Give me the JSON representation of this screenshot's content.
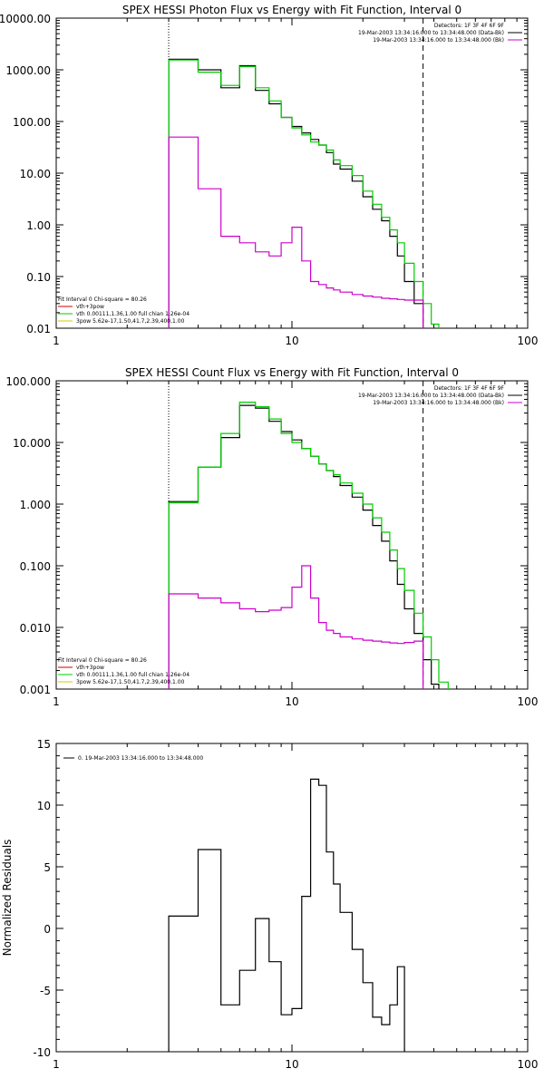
{
  "chart_data": [
    {
      "type": "line",
      "title": "SPEX HESSI Photon Flux vs Energy with Fit Function, Interval 0",
      "xscale": "log",
      "yscale": "log",
      "xlim": [
        1,
        100
      ],
      "ylim": [
        0.01,
        10000
      ],
      "xticks": [
        1,
        10,
        100
      ],
      "xtick_labels": [
        "1",
        "10",
        "100"
      ],
      "yticks": [
        0.01,
        0.1,
        1,
        10,
        100,
        1000,
        10000
      ],
      "ytick_labels": [
        "0.01",
        "0.10",
        "1.00",
        "10.00",
        "100.00",
        "1000.00",
        "10000.00"
      ],
      "vlines": [
        {
          "x": 3.0,
          "style": "dotted"
        },
        {
          "x": 36.0,
          "style": "dashed"
        }
      ],
      "legend_top": [
        {
          "text": "Detectors: 1F 3F 4F 6F 9F",
          "color": "#000000"
        },
        {
          "text": "19-Mar-2003 13:34:16.000 to 13:34:48.000 (Data-Bk)",
          "color": "#000000"
        },
        {
          "text": "19-Mar-2003 13:34:16.000 to 13:34:48.000 (Bk)",
          "color": "#cc00cc"
        }
      ],
      "legend_bottom": [
        {
          "text": "Fit Interval 0   Chi-square = 80.26",
          "color": null
        },
        {
          "text": "vth+3pow",
          "color": "#cc0000"
        },
        {
          "text": "vth 0.00111,1.36,1.00  full chian 1.26e-04",
          "color": "#00cc00"
        },
        {
          "text": "3pow 5.62e-17,1.50,41.7,2.39,400,1.00",
          "color": "#cccc00"
        }
      ],
      "bin_edges": [
        3,
        4,
        5,
        6,
        7,
        8,
        9,
        10,
        11,
        12,
        13,
        14,
        15,
        16,
        18,
        20,
        22,
        24,
        26,
        28,
        30,
        33,
        36,
        39,
        42
      ],
      "series": [
        {
          "color": "#000000",
          "values": [
            1600,
            1000,
            450,
            1200,
            400,
            220,
            120,
            80,
            60,
            45,
            35,
            25,
            15,
            12,
            7,
            3.5,
            2.0,
            1.2,
            0.6,
            0.25,
            0.08,
            0.03,
            null,
            null
          ]
        },
        {
          "color": "#00cc00",
          "values": [
            1550,
            900,
            500,
            1150,
            450,
            250,
            120,
            75,
            55,
            40,
            35,
            28,
            18,
            14,
            9,
            4.5,
            2.5,
            1.4,
            0.8,
            0.45,
            0.18,
            0.08,
            0.03,
            0.012
          ]
        },
        {
          "color": "#cc00cc",
          "values": [
            50,
            5,
            0.6,
            0.45,
            0.3,
            0.25,
            0.45,
            0.9,
            0.2,
            0.08,
            0.07,
            0.06,
            0.055,
            0.05,
            0.045,
            0.042,
            0.04,
            0.038,
            0.037,
            0.036,
            0.035,
            0.035,
            null,
            null
          ]
        }
      ]
    },
    {
      "type": "line",
      "title": "SPEX HESSI Count Flux vs Energy with Fit Function, Interval 0",
      "xscale": "log",
      "yscale": "log",
      "xlim": [
        1,
        100
      ],
      "ylim": [
        0.001,
        100
      ],
      "xticks": [
        1,
        10,
        100
      ],
      "xtick_labels": [
        "1",
        "10",
        "100"
      ],
      "yticks": [
        0.001,
        0.01,
        0.1,
        1,
        10,
        100
      ],
      "ytick_labels": [
        "0.001",
        "0.010",
        "0.100",
        "1.000",
        "10.000",
        "100.000"
      ],
      "vlines": [
        {
          "x": 3.0,
          "style": "dotted"
        },
        {
          "x": 36.0,
          "style": "dashed"
        }
      ],
      "legend_top": [
        {
          "text": "Detectors: 1F 3F 4F 6F 9F",
          "color": "#000000"
        },
        {
          "text": "19-Mar-2003 13:34:16.000 to 13:34:48.000 (Data-Bk)",
          "color": "#000000"
        },
        {
          "text": "19-Mar-2003 13:34:16.000 to 13:34:48.000 (Bk)",
          "color": "#cc00cc"
        }
      ],
      "legend_bottom": [
        {
          "text": "Fit Interval 0   Chi-square = 80.26",
          "color": null
        },
        {
          "text": "vth+3pow",
          "color": "#cc0000"
        },
        {
          "text": "vth 0.00111,1.36,1.00  full chian 1.26e-04",
          "color": "#00cc00"
        },
        {
          "text": "3pow 5.62e-17,1.50,41.7,2.39,400,1.00",
          "color": "#cccc00"
        }
      ],
      "bin_edges": [
        3,
        4,
        5,
        6,
        7,
        8,
        9,
        10,
        11,
        12,
        13,
        14,
        15,
        16,
        18,
        20,
        22,
        24,
        26,
        28,
        30,
        33,
        36,
        39,
        42,
        46
      ],
      "series": [
        {
          "color": "#000000",
          "values": [
            1.1,
            4.0,
            12,
            40,
            36,
            22,
            15,
            11,
            8,
            6,
            4.5,
            3.5,
            2.8,
            2.0,
            1.3,
            0.8,
            0.45,
            0.25,
            0.12,
            0.05,
            0.02,
            0.008,
            0.003,
            0.0012,
            null
          ]
        },
        {
          "color": "#00cc00",
          "values": [
            1.05,
            4.0,
            14,
            45,
            38,
            24,
            14,
            10,
            8,
            6,
            4.5,
            3.5,
            3.0,
            2.2,
            1.5,
            1.0,
            0.6,
            0.35,
            0.18,
            0.09,
            0.04,
            0.017,
            0.007,
            0.003,
            0.0013
          ]
        },
        {
          "color": "#cc00cc",
          "values": [
            0.035,
            0.03,
            0.025,
            0.02,
            0.018,
            0.019,
            0.021,
            0.045,
            0.1,
            0.03,
            0.012,
            0.009,
            0.008,
            0.007,
            0.0065,
            0.0062,
            0.006,
            0.0058,
            0.0056,
            0.0055,
            0.0057,
            0.006,
            null,
            null,
            null
          ]
        }
      ]
    },
    {
      "type": "line",
      "title": "",
      "xscale": "log",
      "yscale": "linear",
      "xlim": [
        1,
        100
      ],
      "ylim": [
        -10,
        15
      ],
      "xticks": [
        1,
        10,
        100
      ],
      "xtick_labels": [
        "1",
        "10",
        "100"
      ],
      "yticks": [
        -10,
        -5,
        0,
        5,
        10,
        15
      ],
      "ytick_labels": [
        "-10",
        "-5",
        "0",
        "5",
        "10",
        "15"
      ],
      "ylabel": "Normalized Residuals",
      "legend_top": [
        {
          "text": "0. 19-Mar-2003 13:34:16.000 to 13:34:48.000",
          "color": "#000000"
        }
      ],
      "bin_edges": [
        3,
        4,
        5,
        6,
        7,
        8,
        9,
        10,
        11,
        12,
        13,
        14,
        15,
        16,
        18,
        20,
        22,
        24,
        26,
        28,
        30,
        33,
        36
      ],
      "series": [
        {
          "color": "#000000",
          "values": [
            1.0,
            6.4,
            -6.2,
            -3.4,
            0.8,
            -2.7,
            -7.0,
            -6.5,
            2.6,
            12.1,
            11.6,
            6.2,
            3.6,
            1.3,
            -1.7,
            -4.4,
            -7.2,
            -7.8,
            -6.2,
            -3.1,
            null,
            null
          ]
        }
      ]
    }
  ]
}
